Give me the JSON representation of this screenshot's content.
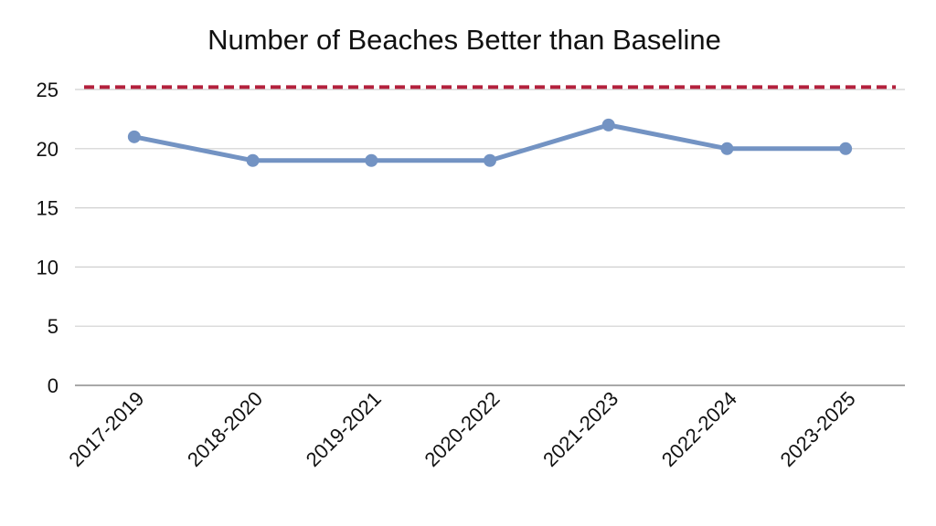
{
  "chart_data": {
    "type": "line",
    "title": "Number of Beaches Better than Baseline",
    "xlabel": "",
    "ylabel": "",
    "categories": [
      "2017-2019",
      "2018-2020",
      "2019-2021",
      "2020-2022",
      "2021-2023",
      "2022-2024",
      "2023-2025"
    ],
    "series": [
      {
        "values": [
          21,
          19,
          19,
          19,
          22,
          20,
          20
        ],
        "color": "#7393c3",
        "marker": "circle"
      }
    ],
    "reference_line": {
      "value": 25.2,
      "color": "#b3203c",
      "style": "dashed"
    },
    "ylim": [
      0,
      25
    ],
    "yticks": [
      0,
      5,
      10,
      15,
      20,
      25
    ],
    "grid": true,
    "legend": "none"
  }
}
